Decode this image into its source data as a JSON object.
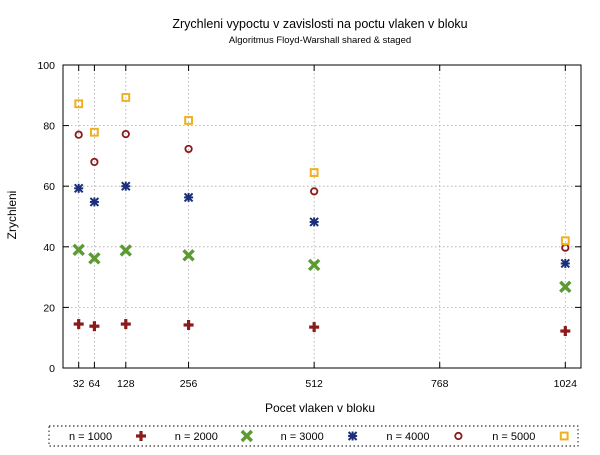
{
  "chart_data": {
    "type": "scatter",
    "title": "Zrychleni vypoctu v zavislosti na poctu vlaken v bloku",
    "subtitle": "Algoritmus Floyd-Warshall shared & staged",
    "xlabel": "Pocet vlaken v bloku",
    "ylabel": "Zrychleni",
    "x_ticks": [
      "32",
      "64",
      "128",
      "256",
      "512",
      "768",
      "1024"
    ],
    "y_ticks": [
      "0",
      "20",
      "40",
      "60",
      "80",
      "100"
    ],
    "ylim": [
      0,
      100
    ],
    "grid": true,
    "legend_position": "bottom",
    "x": [
      32,
      64,
      128,
      256,
      512,
      1024
    ],
    "series": [
      {
        "name": "n = 1000",
        "color": "#8b1a1a",
        "marker": "plus",
        "values": [
          14.5,
          13.8,
          14.5,
          14.2,
          13.5,
          12.2
        ]
      },
      {
        "name": "n = 2000",
        "color": "#5a9b32",
        "marker": "cross",
        "values": [
          39.0,
          36.2,
          38.8,
          37.2,
          34.0,
          26.8
        ]
      },
      {
        "name": "n = 3000",
        "color": "#1a2f7a",
        "marker": "star",
        "values": [
          59.3,
          54.8,
          60.0,
          56.3,
          48.2,
          34.5
        ]
      },
      {
        "name": "n = 4000",
        "color": "#8b1a1a",
        "marker": "circle",
        "values": [
          77.0,
          68.0,
          77.2,
          72.3,
          58.3,
          39.7
        ]
      },
      {
        "name": "n = 5000",
        "color": "#f0b020",
        "marker": "square",
        "values": [
          87.2,
          77.8,
          89.3,
          81.7,
          64.5,
          42.0
        ]
      }
    ]
  }
}
